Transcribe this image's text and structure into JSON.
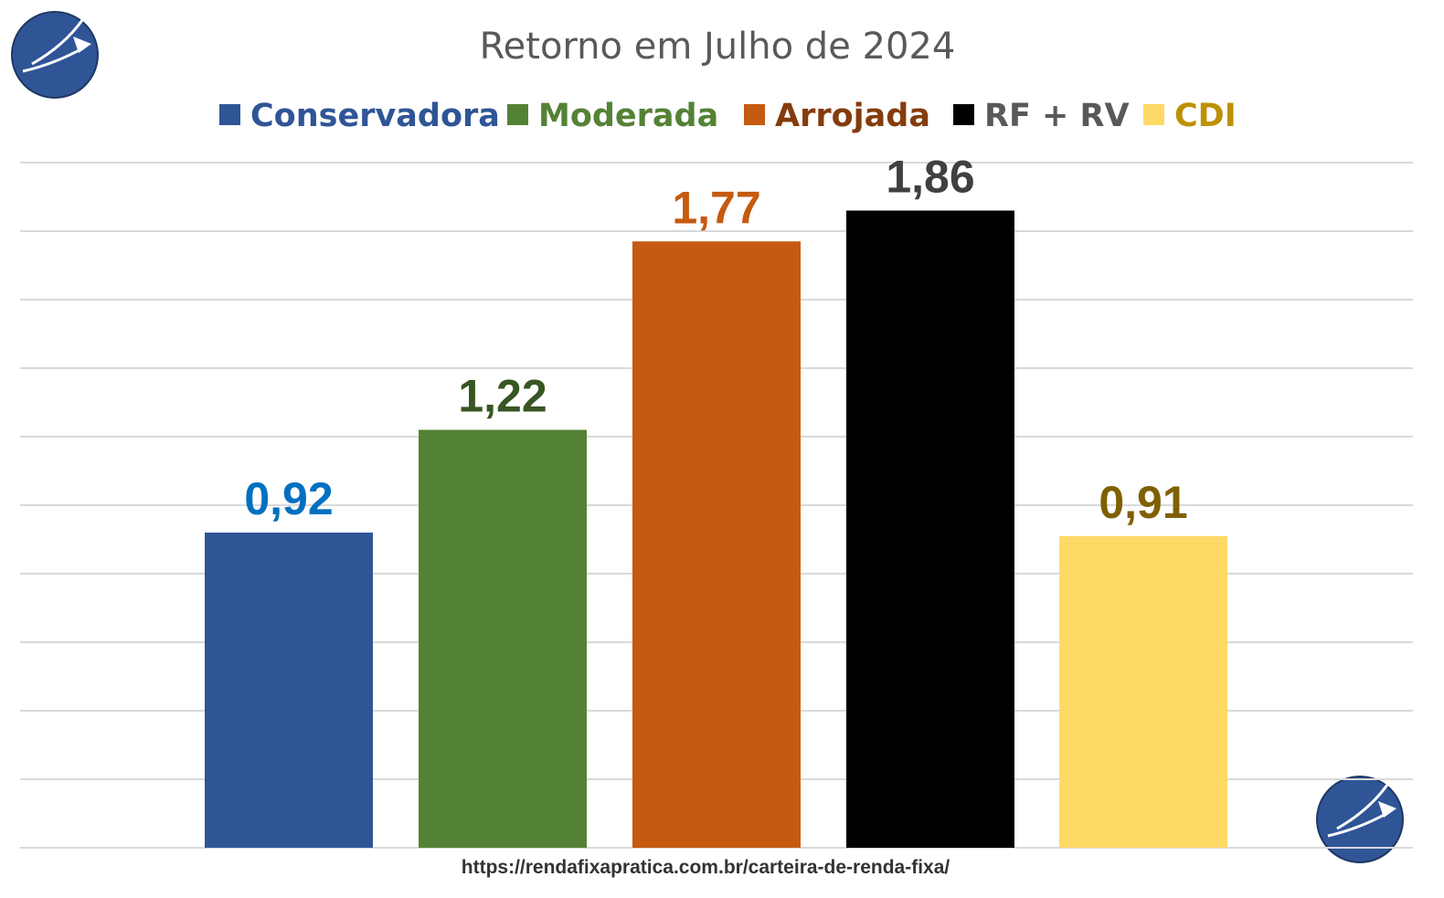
{
  "source_url": "https://rendafixapratica.com.br/carteira-de-renda-fixa/",
  "chart_data": {
    "type": "bar",
    "title": "Retorno em Julho de 2024",
    "categories": [
      "Conservadora",
      "Moderada",
      "Arrojada",
      "RF + RV",
      "CDI"
    ],
    "values": [
      0.92,
      1.22,
      1.77,
      1.86,
      0.91
    ],
    "data_labels": [
      "0,92",
      "1,22",
      "1,77",
      "1,86",
      "0,91"
    ],
    "bar_colors": [
      "#2F5597",
      "#548235",
      "#C55A11",
      "#000000",
      "#FFD966"
    ],
    "label_colors": [
      "#0070C0",
      "#375623",
      "#C55A11",
      "#404040",
      "#7F6000"
    ],
    "legend_text_colors": [
      "#2F5597",
      "#548235",
      "#843C0C",
      "#595959",
      "#BF9000"
    ],
    "ylim": [
      0,
      2.0
    ],
    "grid": true,
    "legend_position": "top",
    "xlabel": "",
    "ylabel": ""
  },
  "icons": [
    "logo-icon",
    "logo-icon"
  ]
}
